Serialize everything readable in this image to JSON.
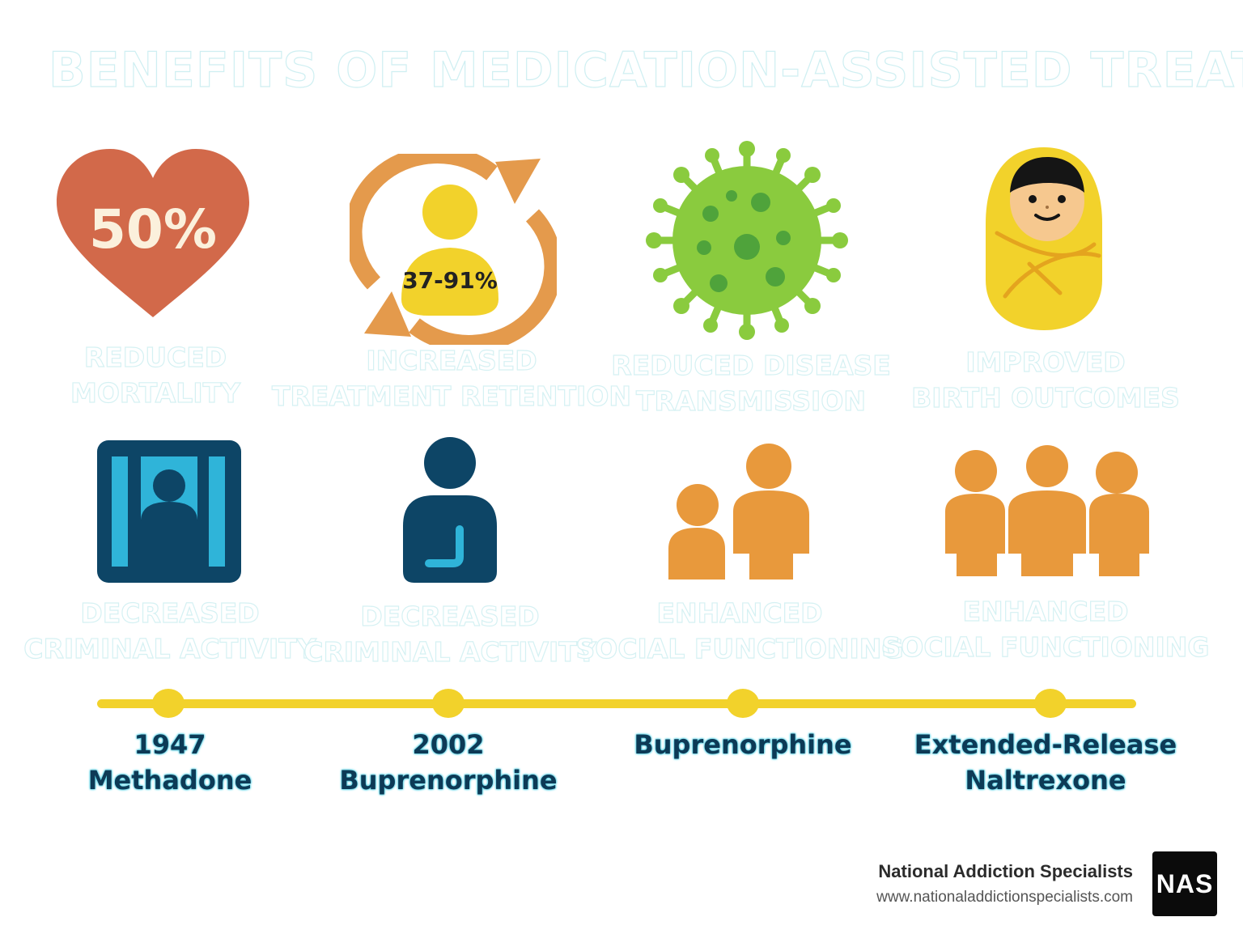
{
  "title": "BENEFITS OF MEDICATION-ASSISTED TREATMENT",
  "benefits": [
    {
      "icon": "heart-icon",
      "stat": "50%",
      "line1": "REDUCED",
      "line2": "MORTALITY"
    },
    {
      "icon": "retention-cycle-icon",
      "stat": "37-91%",
      "line1": "INCREASED",
      "line2": "TREATMENT RETENTION"
    },
    {
      "icon": "virus-icon",
      "line1": "REDUCED DISEASE",
      "line2": "TRANSMISSION"
    },
    {
      "icon": "baby-icon",
      "line1": "IMPROVED",
      "line2": "BIRTH OUTCOMES"
    },
    {
      "icon": "jail-icon",
      "line1": "DECREASED",
      "line2": "CRIMINAL ACTIVITY"
    },
    {
      "icon": "person-icon",
      "line1": "DECREASED",
      "line2": "CRIMINAL ACTIVITY"
    },
    {
      "icon": "family-icon",
      "line1": "ENHANCED",
      "line2": "SOCIAL FUNCTIONING"
    },
    {
      "icon": "group-icon",
      "line1": "ENHANCED",
      "line2": "SOCIAL FUNCTIONING"
    }
  ],
  "timeline": [
    {
      "line1": "1947",
      "line2": "Methadone"
    },
    {
      "line1": "2002",
      "line2": "Buprenorphine"
    },
    {
      "line1": "Buprenorphine",
      "line2": ""
    },
    {
      "line1": "Extended-Release",
      "line2": "Naltrexone"
    }
  ],
  "brand": {
    "name": "National Addiction Specialists",
    "url": "www.nationaladdictionspecialists.com",
    "logo": "NAS"
  },
  "colors": {
    "heart": "#d2694a",
    "cycle": "#e49a4c",
    "yellow": "#f2d22b",
    "virus": "#8acb3e",
    "navy": "#0d4566",
    "cyan": "#2fb4d9",
    "orange": "#e8993c"
  }
}
